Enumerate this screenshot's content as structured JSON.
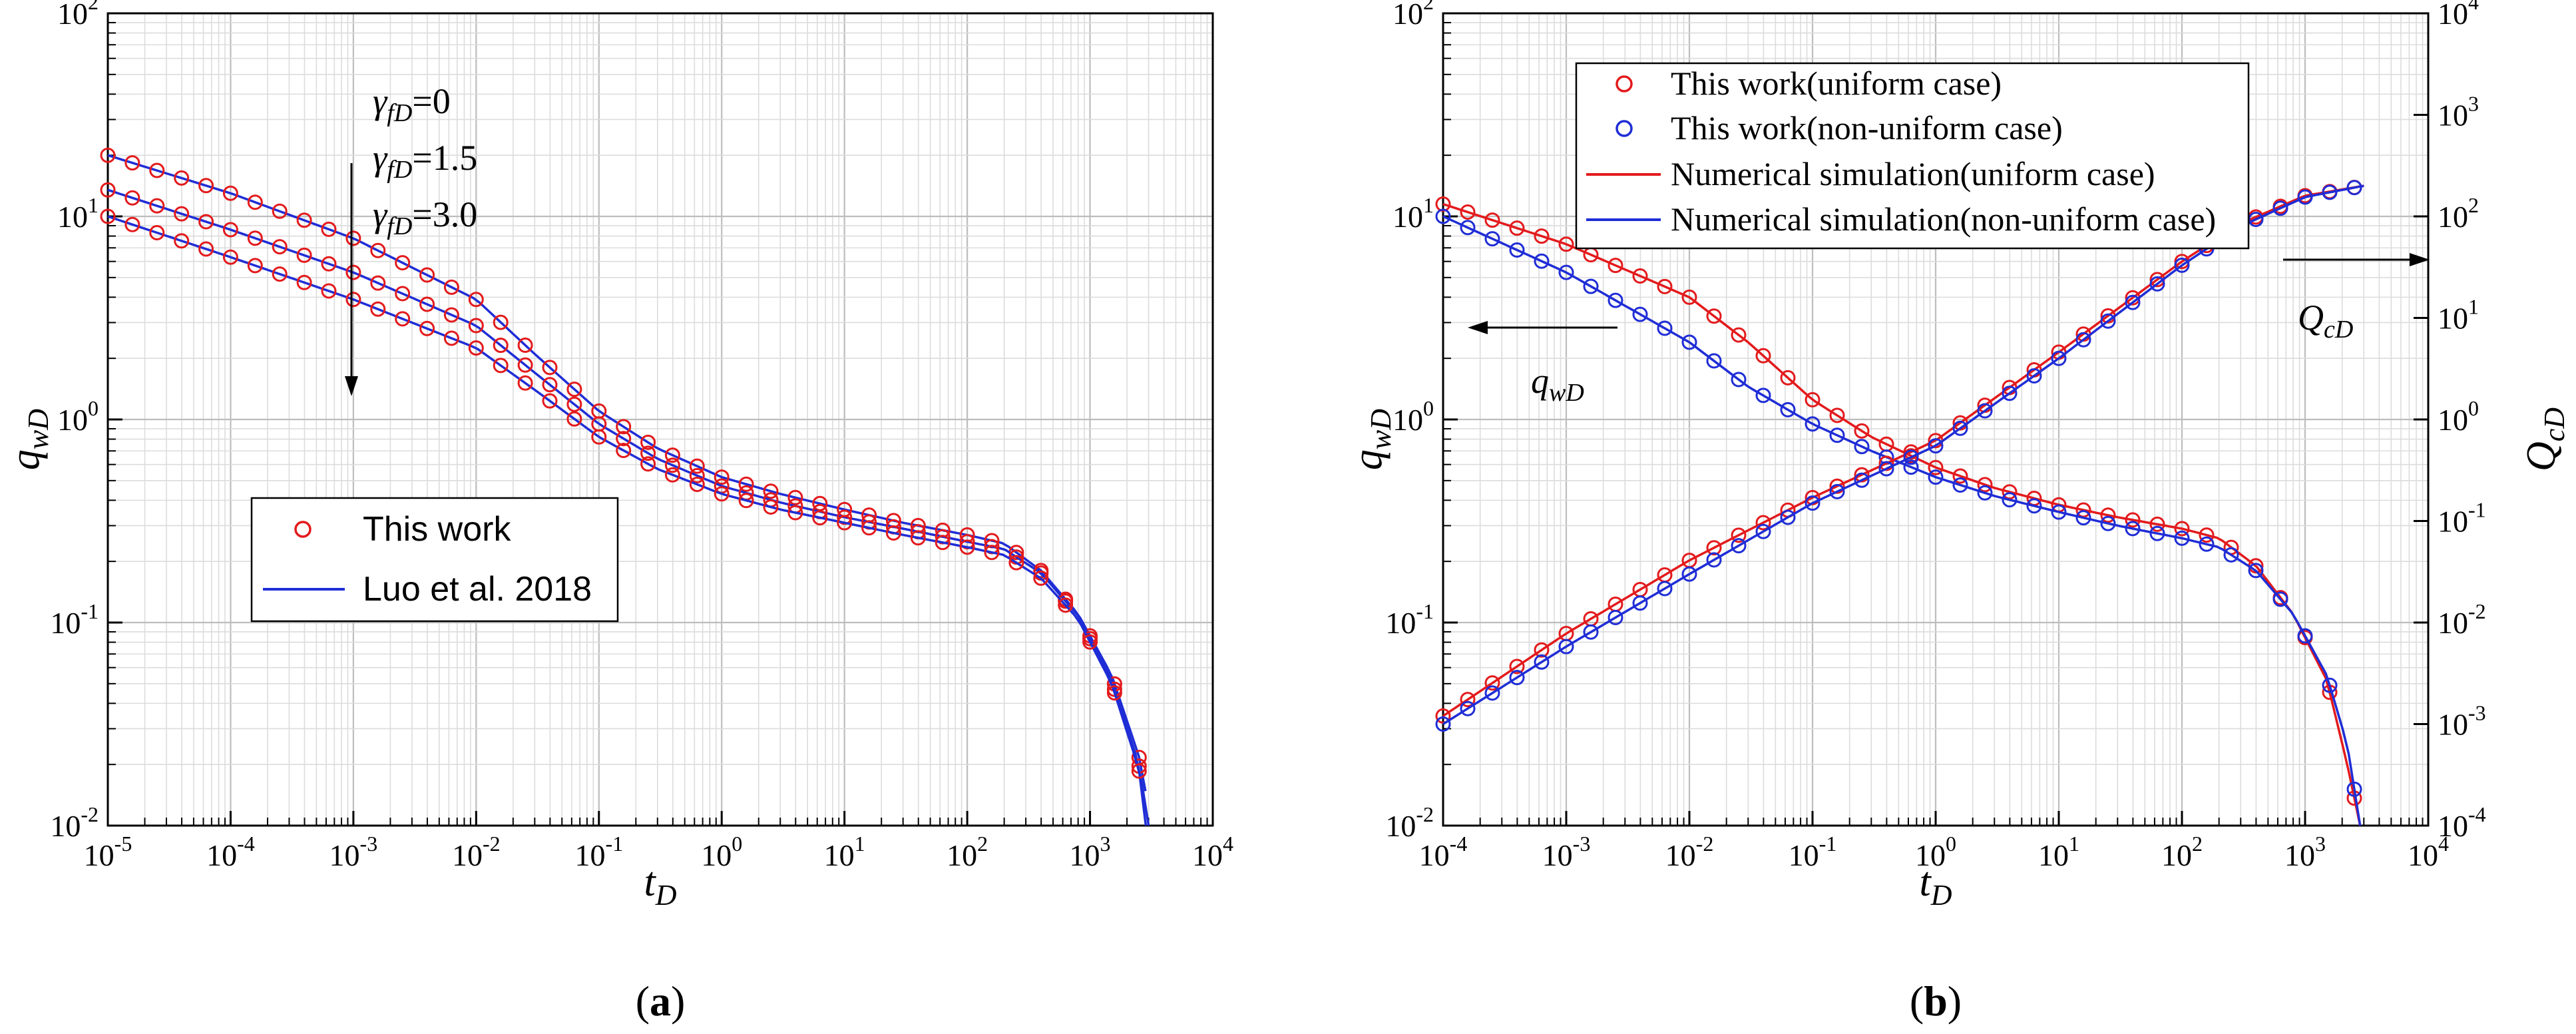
{
  "chart_data": [
    {
      "panel": "a",
      "caption": "a",
      "type": "line",
      "xlabel": "t",
      "xlabel_sub": "D",
      "ylabel": "q",
      "ylabel_sub": "wD",
      "xlog": true,
      "ylog": true,
      "xlim_exp": [
        -5,
        4
      ],
      "ylim_exp": [
        -2,
        2
      ],
      "grid": true,
      "legend": {
        "position": "lower-left",
        "entries": [
          {
            "label": "This work",
            "marker": "circle",
            "color": "#e31a1c"
          },
          {
            "label": "Luo et al. 2018",
            "marker": "line",
            "color": "#1f2dd6"
          }
        ]
      },
      "annotations": [
        {
          "symbol": "γ",
          "sub": "fD",
          "text": "=0"
        },
        {
          "symbol": "γ",
          "sub": "fD",
          "text": "=1.5"
        },
        {
          "symbol": "γ",
          "sub": "fD",
          "text": "=3.0"
        }
      ],
      "series": [
        {
          "name": "γfD=0",
          "x": [
            1e-05,
            0.0001,
            0.001,
            0.01,
            0.03,
            0.1,
            0.3,
            1,
            3,
            10,
            30,
            100,
            200,
            400,
            800,
            1500,
            2500,
            3200
          ],
          "y": [
            20,
            13,
            7.8,
            3.9,
            2.1,
            1.1,
            0.72,
            0.52,
            0.43,
            0.36,
            0.31,
            0.27,
            0.245,
            0.18,
            0.11,
            0.055,
            0.022,
            0.01
          ]
        },
        {
          "name": "γfD=1.5",
          "x": [
            1e-05,
            0.0001,
            0.001,
            0.01,
            0.03,
            0.1,
            0.3,
            1,
            3,
            10,
            30,
            100,
            200,
            400,
            800,
            1500,
            2500,
            3000
          ],
          "y": [
            13.5,
            8.6,
            5.3,
            2.9,
            1.7,
            0.95,
            0.64,
            0.47,
            0.39,
            0.33,
            0.29,
            0.25,
            0.23,
            0.175,
            0.108,
            0.052,
            0.02,
            0.01
          ]
        },
        {
          "name": "γfD=3.0",
          "x": [
            1e-05,
            0.0001,
            0.001,
            0.01,
            0.03,
            0.1,
            0.3,
            1,
            3,
            10,
            30,
            100,
            200,
            400,
            800,
            1500,
            2500,
            2850
          ],
          "y": [
            10,
            6.3,
            3.9,
            2.25,
            1.4,
            0.82,
            0.57,
            0.43,
            0.36,
            0.31,
            0.27,
            0.235,
            0.215,
            0.165,
            0.104,
            0.05,
            0.019,
            0.01
          ]
        }
      ]
    },
    {
      "panel": "b",
      "caption": "b",
      "type": "line",
      "xlabel": "t",
      "xlabel_sub": "D",
      "ylabel": "q",
      "ylabel_sub": "wD",
      "y2label": "Q",
      "y2label_sub": "cD",
      "xlog": true,
      "ylog": true,
      "xlim_exp": [
        -4,
        4
      ],
      "ylim_exp": [
        -2,
        2
      ],
      "y2lim_exp": [
        -4,
        4
      ],
      "grid": true,
      "legend": {
        "position": "top-right",
        "entries": [
          {
            "label": "This work(uniform case)",
            "marker": "circle",
            "color": "#e31a1c"
          },
          {
            "label": "This work(non-uniform case)",
            "marker": "circle",
            "color": "#1f2dd6"
          },
          {
            "label": "Numerical simulation(uniform case)",
            "marker": "line",
            "color": "#e31a1c"
          },
          {
            "label": "Numerical simulation(non-uniform case)",
            "marker": "line",
            "color": "#1f2dd6"
          }
        ]
      },
      "annotations": [
        {
          "symbol": "q",
          "sub": "wD"
        },
        {
          "symbol": "Q",
          "sub": "cD"
        }
      ],
      "series": [
        {
          "name": "qwD uniform",
          "axis": "left",
          "color": "#e31a1c",
          "x": [
            0.0001,
            0.001,
            0.01,
            0.03,
            0.1,
            0.3,
            1,
            3,
            10,
            30,
            100,
            200,
            400,
            800,
            1500,
            2200,
            2800
          ],
          "y": [
            11.5,
            7.3,
            4.0,
            2.4,
            1.25,
            0.82,
            0.58,
            0.46,
            0.38,
            0.33,
            0.29,
            0.26,
            0.19,
            0.11,
            0.052,
            0.02,
            0.01
          ]
        },
        {
          "name": "qwD non-uniform",
          "axis": "left",
          "color": "#1f2dd6",
          "x": [
            0.0001,
            0.001,
            0.01,
            0.03,
            0.1,
            0.3,
            1,
            3,
            10,
            30,
            100,
            200,
            400,
            800,
            1500,
            2200,
            2800
          ],
          "y": [
            10,
            5.3,
            2.4,
            1.45,
            0.95,
            0.7,
            0.52,
            0.42,
            0.35,
            0.3,
            0.26,
            0.235,
            0.18,
            0.11,
            0.055,
            0.025,
            0.01
          ]
        },
        {
          "name": "QcD uniform",
          "axis": "right",
          "color": "#e31a1c",
          "x": [
            0.0001,
            0.001,
            0.01,
            0.1,
            1,
            10,
            100,
            300,
            1000,
            3000
          ],
          "y": [
            0.0012,
            0.0078,
            0.041,
            0.17,
            0.62,
            4.6,
            36,
            85,
            160,
            200
          ]
        },
        {
          "name": "QcD non-uniform",
          "axis": "right",
          "color": "#1f2dd6",
          "x": [
            0.0001,
            0.001,
            0.01,
            0.1,
            1,
            10,
            100,
            300,
            1000,
            3000
          ],
          "y": [
            0.001,
            0.0058,
            0.03,
            0.15,
            0.55,
            4.0,
            33,
            80,
            155,
            200
          ]
        }
      ]
    }
  ]
}
